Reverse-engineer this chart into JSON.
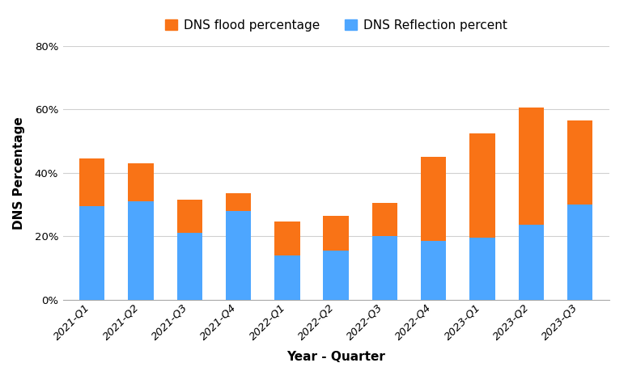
{
  "categories": [
    "2021-Q1",
    "2021-Q2",
    "2021-Q3",
    "2021-Q4",
    "2022-Q1",
    "2022-Q2",
    "2022-Q3",
    "2022-Q4",
    "2023-Q1",
    "2023-Q2",
    "2023-Q3"
  ],
  "dns_reflection": [
    29.5,
    31.0,
    21.0,
    28.0,
    14.0,
    15.5,
    20.0,
    18.5,
    19.5,
    23.5,
    30.0
  ],
  "dns_flood": [
    15.0,
    12.0,
    10.5,
    5.5,
    10.5,
    11.0,
    10.5,
    26.5,
    33.0,
    37.0,
    26.5
  ],
  "flood_color": "#f97316",
  "reflection_color": "#4da6ff",
  "xlabel": "Year - Quarter",
  "ylabel": "DNS Percentage",
  "legend_flood": "DNS flood percentage",
  "legend_reflection": "DNS Reflection percent",
  "ylim": [
    0,
    80
  ],
  "yticks": [
    0,
    20,
    40,
    60,
    80
  ],
  "background_color": "#ffffff",
  "grid_color": "#d0d0d0",
  "legend_fontsize": 11,
  "axis_label_fontsize": 11,
  "tick_fontsize": 9.5
}
